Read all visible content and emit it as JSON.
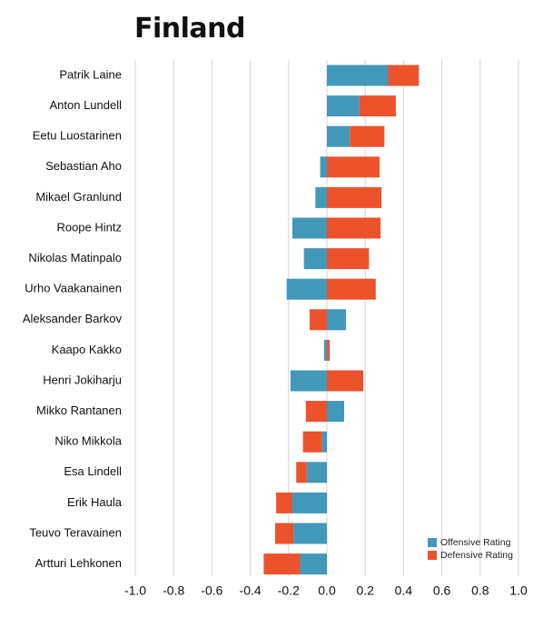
{
  "title": "Finland",
  "chart_data": {
    "type": "bar",
    "orientation": "horizontal",
    "stacked": "diverging",
    "title": "Finland",
    "xlabel": "",
    "ylabel": "",
    "xlim": [
      -1.0,
      1.0
    ],
    "xticks": [
      "-1.0",
      "-0.8",
      "-0.6",
      "-0.4",
      "-0.2",
      "0.0",
      "0.2",
      "0.4",
      "0.6",
      "0.8",
      "1.0"
    ],
    "xtick_values": [
      -1.0,
      -0.8,
      -0.6,
      -0.4,
      -0.2,
      0.0,
      0.2,
      0.4,
      0.6,
      0.8,
      1.0
    ],
    "grid": "vertical",
    "legend_position": "bottom-right",
    "categories": [
      "Patrik Laine",
      "Anton Lundell",
      "Eetu Luostarinen",
      "Sebastian Aho",
      "Mikael Granlund",
      "Roope Hintz",
      "Nikolas Matinpalo",
      "Urho Vaakanainen",
      "Aleksander Barkov",
      "Kaapo Kakko",
      "Henri Jokiharju",
      "Mikko Rantanen",
      "Niko Mikkola",
      "Esa Lindell",
      "Erik Haula",
      "Teuvo Teravainen",
      "Artturi Lehkonen"
    ],
    "series": [
      {
        "name": "Offensive Rating",
        "color": "#4298b9",
        "values": [
          0.32,
          0.17,
          0.12,
          -0.035,
          -0.06,
          -0.18,
          -0.12,
          -0.21,
          0.1,
          -0.015,
          -0.19,
          0.09,
          -0.025,
          -0.105,
          -0.18,
          -0.175,
          -0.14
        ]
      },
      {
        "name": "Defensive Rating",
        "color": "#ec522c",
        "values": [
          0.16,
          0.19,
          0.18,
          0.275,
          0.285,
          0.28,
          0.22,
          0.255,
          -0.09,
          0.015,
          0.19,
          -0.11,
          -0.1,
          -0.055,
          -0.085,
          -0.095,
          -0.19
        ]
      }
    ]
  }
}
